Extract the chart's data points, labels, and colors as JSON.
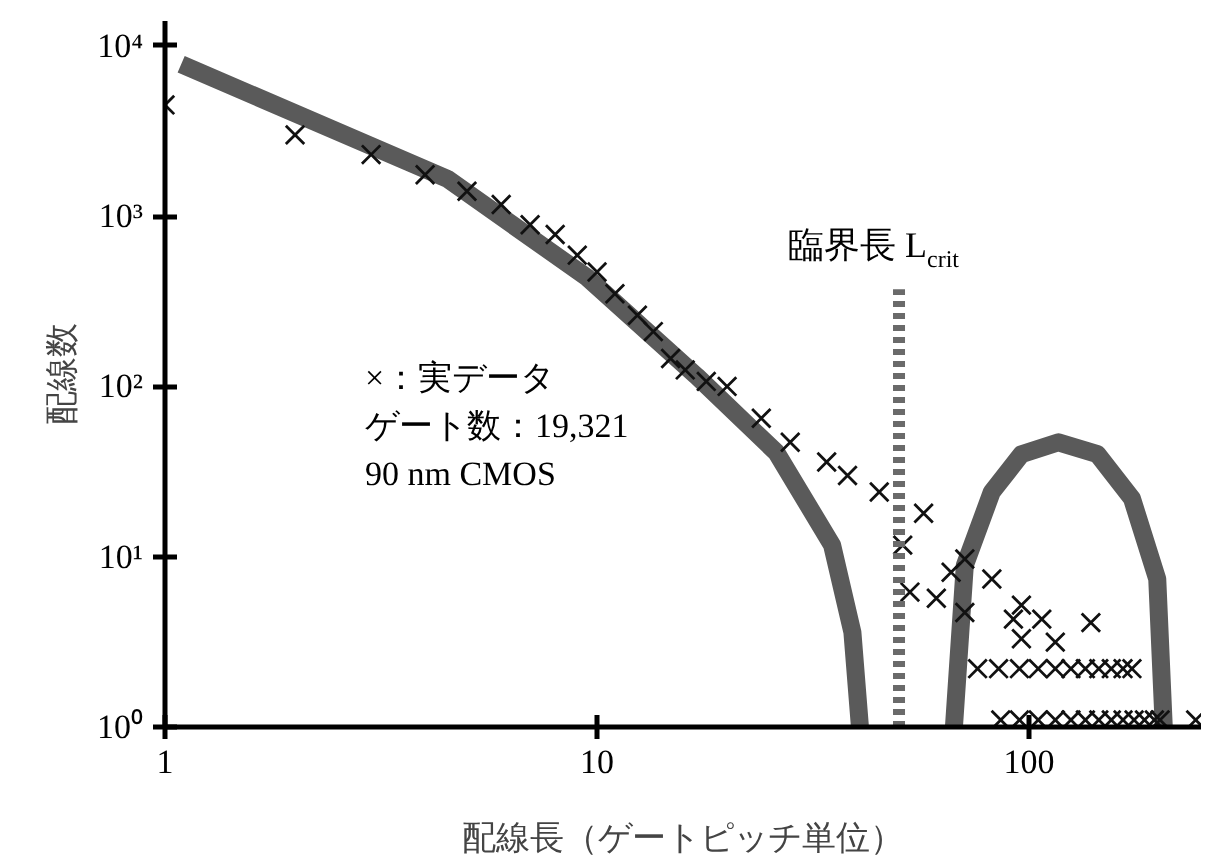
{
  "chart_data": {
    "type": "scatter",
    "xlabel": "配線長（ゲートピッチ単位）",
    "ylabel": "配線数",
    "log": "xy",
    "xlim": [
      1,
      250
    ],
    "ylim": [
      1,
      14000
    ],
    "xticks": [
      1,
      10,
      100
    ],
    "yticks": [
      {
        "value": 1,
        "label": "10⁰"
      },
      {
        "value": 10,
        "label": "10¹"
      },
      {
        "value": 100,
        "label": "10²"
      },
      {
        "value": 1000,
        "label": "10³"
      },
      {
        "value": 10000,
        "label": "10⁴"
      }
    ],
    "grid": false,
    "series": [
      {
        "type": "line",
        "color": "#5a5a5a",
        "x": [
          1.09,
          4.5,
          9.5,
          17,
          26,
          35,
          39,
          40.6
        ],
        "values": [
          7800,
          1660,
          435,
          115,
          41,
          11.7,
          3.6,
          1
        ]
      },
      {
        "type": "line",
        "color": "#5a5a5a",
        "x": [
          67,
          71,
          82,
          96,
          117,
          144,
          173,
          198,
          205
        ],
        "values": [
          1,
          8.9,
          24,
          40,
          47,
          40,
          22,
          7.4,
          1
        ]
      },
      {
        "marker": "cross",
        "color": "#111111",
        "x": [
          1,
          2,
          3,
          4,
          5,
          6,
          7,
          8,
          9,
          10,
          11,
          12.4,
          13.5,
          14.8,
          16,
          17.9,
          20,
          24,
          28,
          34,
          38,
          45,
          57,
          51,
          53,
          61,
          66,
          71,
          71,
          82,
          92,
          96,
          96,
          107,
          115,
          139,
          76,
          85,
          95,
          105,
          115,
          125,
          135,
          145,
          155,
          165,
          173,
          86,
          95,
          105,
          115,
          125,
          135,
          145,
          155,
          165,
          175,
          185,
          195,
          201,
          243
        ],
        "values": [
          4500,
          3000,
          2300,
          1750,
          1400,
          1170,
          890,
          780,
          590,
          470,
          350,
          262,
          210,
          146,
          125,
          107,
          100,
          65,
          47,
          36,
          30,
          24,
          18,
          11.7,
          6.2,
          5.7,
          8.1,
          9.7,
          4.7,
          7.4,
          4.3,
          5.2,
          3.3,
          4.3,
          3.15,
          4.1,
          2.2,
          2.2,
          2.2,
          2.2,
          2.2,
          2.2,
          2.2,
          2.2,
          2.2,
          2.2,
          2.2,
          1.1,
          1.1,
          1.1,
          1.1,
          1.1,
          1.1,
          1.1,
          1.1,
          1.1,
          1.1,
          1.1,
          1.1,
          1.1,
          1.1
        ]
      }
    ],
    "ref_lines": [
      {
        "axis": "x",
        "value": 50,
        "label": "臨界長 L$_{crit}$",
        "color": "#6a6a6a",
        "line_style": "dotted"
      }
    ],
    "annotations": [
      "×：実データ",
      "ゲート数：19,321",
      "90 nm CMOS"
    ]
  }
}
